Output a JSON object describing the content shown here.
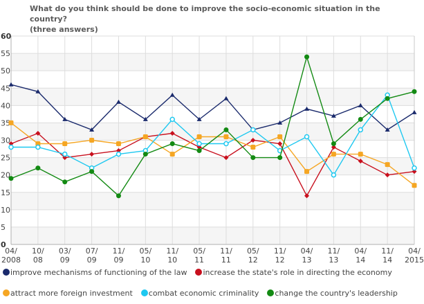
{
  "chart_data": {
    "type": "line",
    "title": "What do you think should be done to improve the socio-economic situation in the country? (three answers)",
    "title_lines": [
      "What do you think should be done to improve the socio-economic situation in the country?",
      "(three answers)"
    ],
    "xlabel": "",
    "ylabel": "",
    "ylim": [
      0,
      60
    ],
    "yticks": [
      0,
      5,
      10,
      15,
      20,
      25,
      30,
      35,
      40,
      45,
      50,
      55,
      60
    ],
    "grid": true,
    "legend_position": "bottom",
    "categories": [
      [
        "04/",
        "2008"
      ],
      [
        "10/",
        "08"
      ],
      [
        "03/",
        "09"
      ],
      [
        "07/",
        "09"
      ],
      [
        "11/",
        "09"
      ],
      [
        "05/",
        "10"
      ],
      [
        "11/",
        "10"
      ],
      [
        "05/",
        "11"
      ],
      [
        "11/",
        "11"
      ],
      [
        "05/",
        "12"
      ],
      [
        "11/",
        "12"
      ],
      [
        "04/",
        "13"
      ],
      [
        "11/",
        "13"
      ],
      [
        "04/",
        "14"
      ],
      [
        "11/",
        "14"
      ],
      [
        "04/",
        "2015"
      ]
    ],
    "series": [
      {
        "name": "improve mechanisms of functioning of the law",
        "color": "#1a2a6c",
        "marker": "triangle",
        "values": [
          46,
          44,
          36,
          33,
          41,
          36,
          43,
          36,
          42,
          33,
          35,
          39,
          37,
          40,
          33,
          38
        ]
      },
      {
        "name": "increase the state's role in directing the economy",
        "color": "#c8101e",
        "marker": "diamond",
        "values": [
          29,
          32,
          25,
          26,
          27,
          31,
          32,
          28,
          25,
          30,
          29,
          14,
          28,
          24,
          20,
          21
        ]
      },
      {
        "name": "attract more foreign investment",
        "color": "#f5a623",
        "marker": "square",
        "values": [
          35,
          29,
          29,
          30,
          29,
          31,
          26,
          31,
          31,
          28,
          31,
          21,
          26,
          26,
          23,
          17
        ]
      },
      {
        "name": "combat economic criminality",
        "color": "#1ec8f0",
        "marker": "hollow-circle",
        "values": [
          28,
          28,
          26,
          22,
          26,
          27,
          36,
          29,
          29,
          33,
          27,
          31,
          20,
          33,
          43,
          22
        ]
      },
      {
        "name": "change the country's leadership",
        "color": "#138a13",
        "marker": "circle",
        "values": [
          19,
          22,
          18,
          21,
          14,
          26,
          29,
          27,
          33,
          25,
          25,
          54,
          29,
          36,
          42,
          44
        ]
      }
    ]
  }
}
